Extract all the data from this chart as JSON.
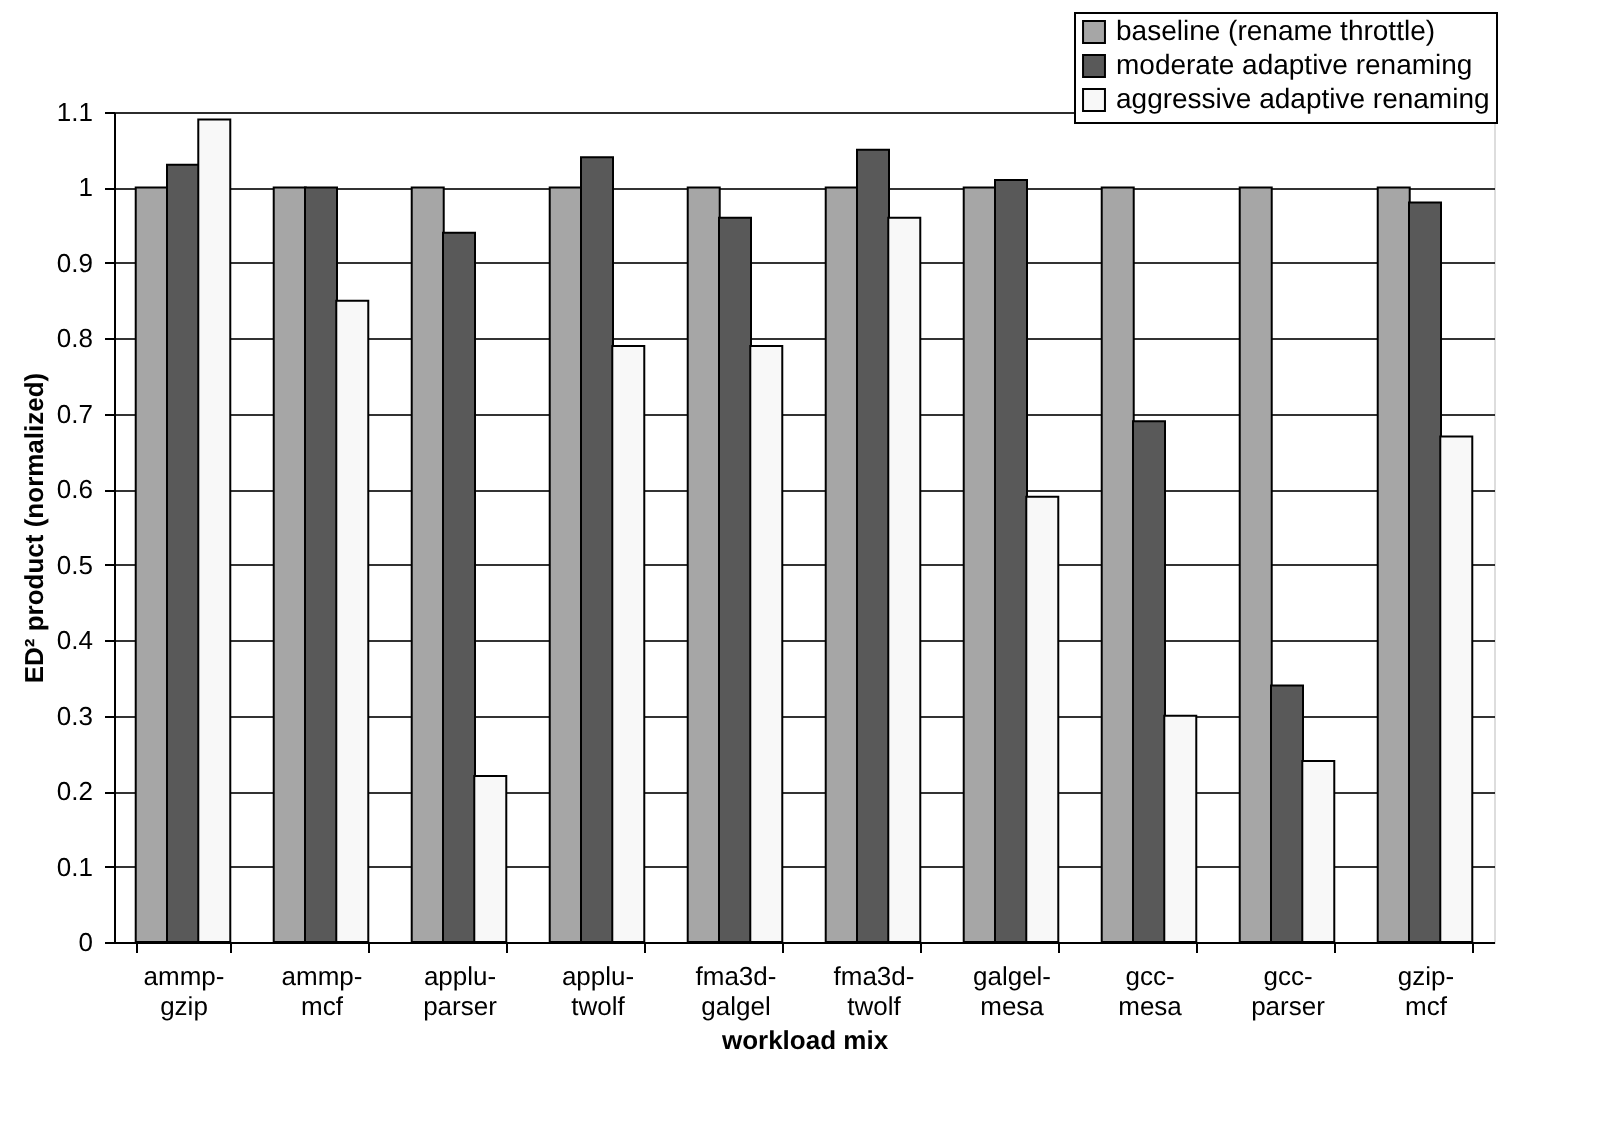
{
  "chart_data": {
    "type": "bar",
    "xlabel": "workload mix",
    "ylabel": "ED² product (normalized)",
    "categories": [
      "ammp-gzip",
      "ammp-mcf",
      "applu-parser",
      "applu-twolf",
      "fma3d-galgel",
      "fma3d-twolf",
      "galgel-mesa",
      "gcc-mesa",
      "gcc-parser",
      "gzip-mcf"
    ],
    "series": [
      {
        "name": "baseline (rename throttle)",
        "color": "#a6a6a6",
        "values": [
          1,
          1,
          1,
          1,
          1,
          1,
          1,
          1,
          1,
          1
        ]
      },
      {
        "name": "moderate adaptive renaming",
        "color": "#595959",
        "values": [
          1.03,
          1.0,
          0.94,
          1.04,
          0.96,
          1.05,
          1.01,
          0.69,
          0.34,
          0.98
        ]
      },
      {
        "name": "aggressive adaptive renaming",
        "color": "#f8f8f8",
        "values": [
          1.09,
          0.85,
          0.22,
          0.79,
          0.79,
          0.96,
          0.59,
          0.3,
          0.24,
          0.67
        ]
      }
    ],
    "ylim": [
      0,
      1.1
    ],
    "yticks": [
      0,
      0.1,
      0.2,
      0.3,
      0.4,
      0.5,
      0.6,
      0.7,
      0.8,
      0.9,
      1,
      1.1
    ],
    "grid": "y",
    "legend": "top right"
  }
}
